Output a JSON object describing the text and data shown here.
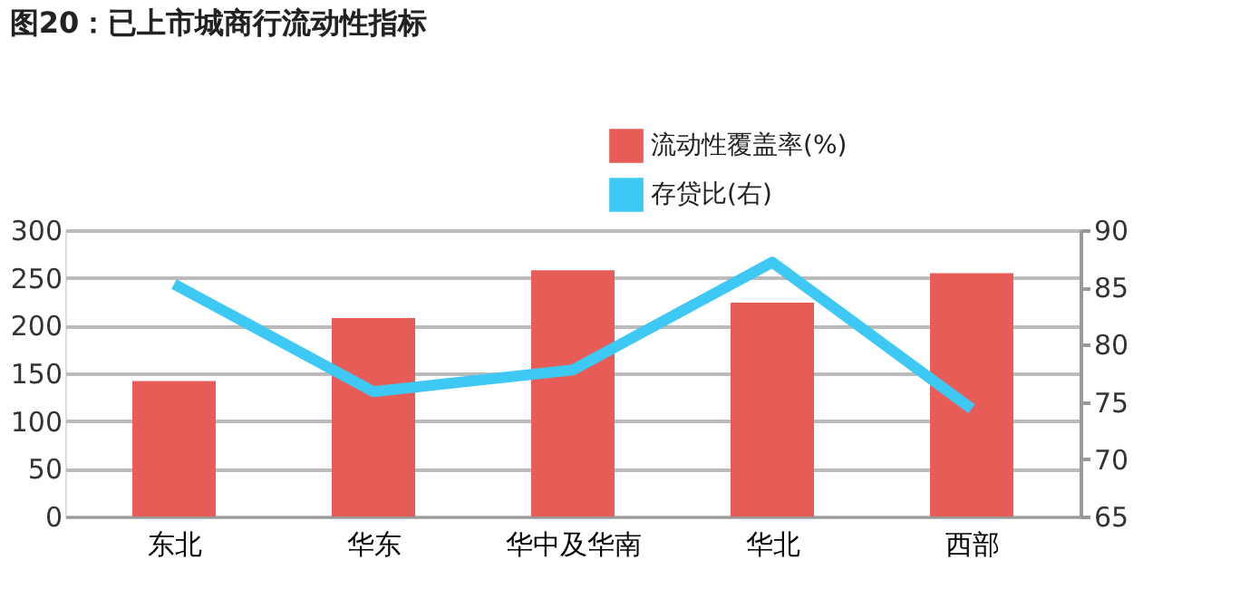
{
  "chart_data": {
    "type": "bar",
    "title": "图20：已上市城商行流动性指标",
    "categories": [
      "东北",
      "华东",
      "华中及华南",
      "华北",
      "西部"
    ],
    "series": [
      {
        "name": "流动性覆盖率(%)",
        "color": "#e85c58",
        "values": [
          142,
          208,
          258,
          224,
          255
        ]
      },
      {
        "name": "存贷比(右)",
        "type": "line",
        "axis": "y2",
        "color": "#3ec8f4",
        "values": [
          85.3,
          75.9,
          77.8,
          87.2,
          74.4
        ]
      }
    ],
    "ylim": [
      0,
      300
    ],
    "yticks": [
      0,
      50,
      100,
      150,
      200,
      250,
      300
    ],
    "y2lim": [
      65,
      90
    ],
    "y2ticks": [
      65,
      70,
      75,
      80,
      85,
      90
    ],
    "grid": "y",
    "legend": "top right"
  }
}
